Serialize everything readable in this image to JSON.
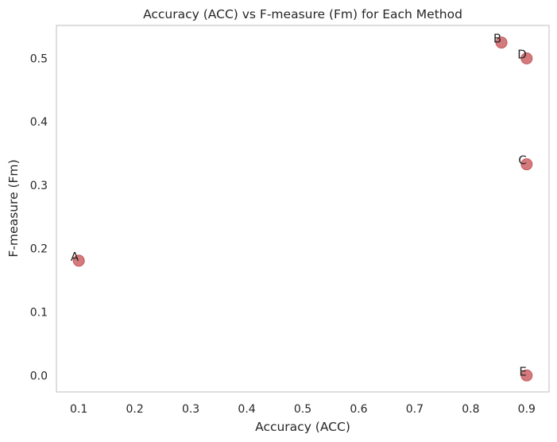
{
  "chart_data": {
    "type": "scatter",
    "title": "Accuracy (ACC) vs F-measure (Fm) for Each Method",
    "xlabel": "Accuracy (ACC)",
    "ylabel": "F-measure (Fm)",
    "xlim": [
      0.06,
      0.94
    ],
    "ylim": [
      -0.026,
      0.552
    ],
    "xticks": [
      0.1,
      0.2,
      0.3,
      0.4,
      0.5,
      0.6,
      0.7,
      0.8,
      0.9
    ],
    "xtick_labels": [
      "0.1",
      "0.2",
      "0.3",
      "0.4",
      "0.5",
      "0.6",
      "0.7",
      "0.8",
      "0.9"
    ],
    "yticks": [
      0.0,
      0.1,
      0.2,
      0.3,
      0.4,
      0.5
    ],
    "ytick_labels": [
      "0.0",
      "0.1",
      "0.2",
      "0.3",
      "0.4",
      "0.5"
    ],
    "grid": false,
    "point_color": "#c44e52",
    "points": [
      {
        "label": "A",
        "x": 0.1,
        "y": 0.181
      },
      {
        "label": "B",
        "x": 0.855,
        "y": 0.525
      },
      {
        "label": "C",
        "x": 0.9,
        "y": 0.333
      },
      {
        "label": "D",
        "x": 0.9,
        "y": 0.5
      },
      {
        "label": "E",
        "x": 0.9,
        "y": 0.0
      }
    ]
  }
}
